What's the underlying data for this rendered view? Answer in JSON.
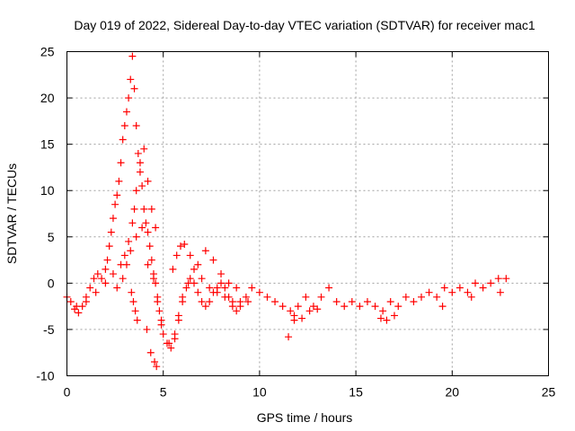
{
  "chart_data": {
    "type": "scatter",
    "title": "Day 019 of 2022, Sidereal Day-to-day VTEC variation (SDTVAR) for receiver mac1",
    "xlabel": "GPS time / hours",
    "ylabel": "SDTVAR / TECUs",
    "xlim": [
      0,
      25
    ],
    "ylim": [
      -10,
      25
    ],
    "x_ticks": [
      0,
      5,
      10,
      15,
      20,
      25
    ],
    "y_ticks": [
      -10,
      -5,
      0,
      5,
      10,
      15,
      20,
      25
    ],
    "x_tick_labels": [
      "0",
      "5",
      "10",
      "15",
      "20",
      "25"
    ],
    "y_tick_labels": [
      "-10",
      "-5",
      "0",
      "5",
      "10",
      "15",
      "20",
      "25"
    ],
    "grid": true,
    "marker": "+",
    "series": [
      {
        "name": "SDTVAR",
        "color": "#ff0000",
        "x": [
          0.0,
          0.2,
          0.4,
          0.6,
          0.8,
          1.0,
          1.2,
          1.4,
          1.6,
          1.8,
          2.0,
          2.1,
          2.2,
          2.3,
          2.4,
          2.5,
          2.6,
          2.7,
          2.8,
          2.9,
          3.0,
          3.1,
          3.2,
          3.3,
          3.4,
          3.5,
          3.6,
          3.7,
          3.8,
          3.9,
          4.0,
          4.1,
          4.2,
          4.3,
          4.4,
          4.5,
          4.6,
          4.7,
          4.8,
          4.9,
          5.0,
          5.2,
          5.4,
          5.6,
          5.8,
          6.0,
          6.2,
          6.4,
          6.6,
          6.8,
          7.0,
          7.2,
          7.4,
          7.6,
          7.8,
          8.0,
          8.2,
          8.4,
          8.6,
          8.8,
          9.0,
          9.3,
          9.6,
          10.0,
          10.4,
          10.8,
          11.2,
          11.6,
          11.8,
          12.0,
          12.4,
          12.8,
          13.2,
          13.6,
          14.0,
          14.4,
          14.8,
          15.2,
          15.6,
          16.0,
          16.4,
          16.8,
          17.2,
          17.6,
          18.0,
          18.4,
          18.8,
          19.2,
          19.6,
          20.0,
          20.4,
          20.8,
          21.2,
          21.6,
          22.0,
          22.4,
          22.8,
          0.5,
          1.0,
          1.5,
          2.0,
          2.4,
          2.8,
          3.0,
          3.2,
          3.4,
          3.5,
          3.6,
          3.8,
          4.0,
          4.2,
          4.4,
          4.6,
          2.6,
          2.9,
          3.1,
          3.3,
          3.6,
          3.9,
          4.2,
          4.5,
          4.7,
          4.9,
          5.3,
          5.6,
          5.8,
          6.0,
          6.3,
          6.6,
          7.0,
          7.4,
          7.8,
          8.2,
          8.6,
          9.0,
          9.4,
          3.35,
          3.45,
          3.55,
          3.65,
          4.15,
          4.35,
          4.55,
          4.65,
          5.5,
          5.7,
          5.9,
          6.1,
          6.4,
          6.8,
          7.2,
          7.6,
          8.0,
          8.4,
          8.8,
          11.5,
          11.8,
          12.2,
          12.6,
          13.0,
          16.3,
          16.6,
          17.0,
          19.5,
          21.0,
          22.5
        ],
        "y": [
          -1.5,
          -2.0,
          -2.8,
          -3.2,
          -2.5,
          -1.5,
          -0.5,
          0.5,
          1.0,
          0.5,
          1.5,
          2.5,
          4.0,
          5.5,
          7.0,
          8.5,
          9.5,
          11.0,
          13.0,
          15.5,
          17.0,
          18.5,
          20.0,
          22.0,
          24.5,
          21.0,
          17.0,
          14.0,
          12.0,
          10.5,
          8.0,
          6.5,
          5.5,
          4.0,
          2.5,
          1.0,
          0.0,
          -1.5,
          -3.0,
          -4.5,
          -5.5,
          -6.5,
          -7.0,
          -5.5,
          -3.5,
          -1.5,
          -0.5,
          0.5,
          0.0,
          -1.0,
          -2.0,
          -2.5,
          -2.0,
          -1.0,
          -0.5,
          0.0,
          -0.5,
          -1.5,
          -2.5,
          -3.0,
          -2.0,
          -1.5,
          -0.5,
          -1.0,
          -1.5,
          -2.0,
          -2.5,
          -3.0,
          -4.0,
          -2.5,
          -1.5,
          -2.5,
          -1.5,
          -0.5,
          -2.0,
          -2.5,
          -2.0,
          -2.5,
          -2.0,
          -2.5,
          -3.0,
          -2.0,
          -2.5,
          -1.5,
          -2.0,
          -1.5,
          -1.0,
          -1.5,
          -0.5,
          -1.0,
          -0.5,
          -1.0,
          0.0,
          -0.5,
          0.0,
          0.5,
          0.5,
          -2.5,
          -2.0,
          -1.0,
          0.0,
          1.0,
          2.0,
          3.0,
          4.5,
          6.5,
          8.0,
          10.0,
          13.0,
          14.5,
          11.0,
          8.0,
          6.0,
          -0.5,
          0.5,
          2.0,
          3.5,
          5.0,
          6.0,
          2.0,
          0.5,
          -2.0,
          -4.0,
          -6.5,
          -6.0,
          -4.0,
          -2.0,
          0.0,
          1.5,
          0.5,
          -0.5,
          -1.0,
          -1.5,
          -2.0,
          -2.5,
          -2.0,
          -1.0,
          -2.0,
          -3.0,
          -4.0,
          -5.0,
          -7.5,
          -8.5,
          -9.0,
          1.5,
          3.0,
          4.0,
          4.2,
          3.0,
          2.0,
          3.5,
          2.5,
          1.0,
          0.0,
          -0.5,
          -5.8,
          -3.5,
          -3.8,
          -3.0,
          -2.8,
          -3.8,
          -4.0,
          -3.5,
          -2.5,
          -1.5,
          -1.0
        ]
      }
    ]
  }
}
